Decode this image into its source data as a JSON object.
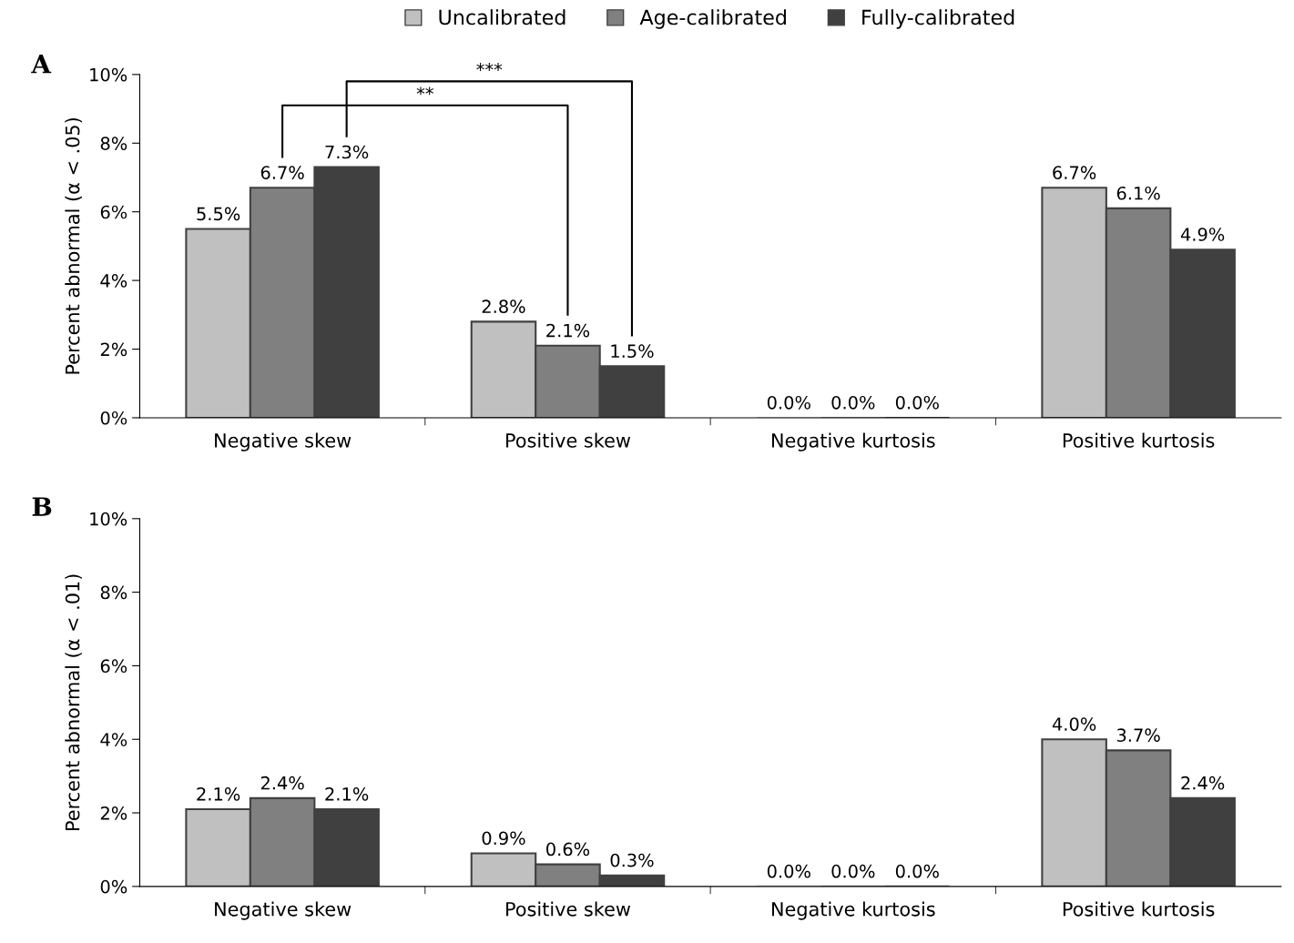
{
  "chart_data": [
    {
      "type": "bar",
      "title": "A",
      "ylabel": "Percent abnormal (α < .05)",
      "categories": [
        "Negative skew",
        "Positive skew",
        "Negative kurtosis",
        "Positive kurtosis"
      ],
      "series": [
        {
          "name": "Uncalibrated",
          "color": "#c0c0c0",
          "values": [
            5.5,
            2.8,
            0.0,
            6.7
          ],
          "value_labels": [
            "5.5%",
            "2.8%",
            "0.0%",
            "6.7%"
          ]
        },
        {
          "name": "Age-calibrated",
          "color": "#808080",
          "values": [
            6.7,
            2.1,
            0.0,
            6.1
          ],
          "value_labels": [
            "6.7%",
            "2.1%",
            "0.0%",
            "6.1%"
          ]
        },
        {
          "name": "Fully-calibrated",
          "color": "#404040",
          "values": [
            7.3,
            1.5,
            0.0,
            4.9
          ],
          "value_labels": [
            "7.3%",
            "1.5%",
            "0.0%",
            "4.9%"
          ]
        }
      ],
      "ylim": [
        0,
        10
      ],
      "yticks": [
        {
          "value": 0,
          "label": "0%"
        },
        {
          "value": 2,
          "label": "2%"
        },
        {
          "value": 4,
          "label": "4%"
        },
        {
          "value": 6,
          "label": "6%"
        },
        {
          "value": 8,
          "label": "8%"
        },
        {
          "value": 10,
          "label": "10%"
        }
      ],
      "annotations": [
        "**",
        "***"
      ],
      "legend": "top",
      "grid": false
    },
    {
      "type": "bar",
      "title": "B",
      "ylabel": "Percent abnormal (α < .01)",
      "categories": [
        "Negative skew",
        "Positive skew",
        "Negative kurtosis",
        "Positive kurtosis"
      ],
      "series": [
        {
          "color": "#c0c0c0",
          "values": [
            2.1,
            0.9,
            0.0,
            4.0
          ],
          "value_labels": [
            "2.1%",
            "0.9%",
            "0.0%",
            "4.0%"
          ]
        },
        {
          "color": "#808080",
          "values": [
            2.4,
            0.6,
            0.0,
            3.7
          ],
          "value_labels": [
            "2.4%",
            "0.6%",
            "0.0%",
            "3.7%"
          ]
        },
        {
          "color": "#404040",
          "values": [
            2.1,
            0.3,
            0.0,
            2.4
          ],
          "value_labels": [
            "2.1%",
            "0.3%",
            "0.0%",
            "2.4%"
          ]
        }
      ],
      "ylim": [
        0,
        10
      ],
      "yticks": [
        {
          "value": 0,
          "label": "0%"
        },
        {
          "value": 2,
          "label": "2%"
        },
        {
          "value": 4,
          "label": "4%"
        },
        {
          "value": 6,
          "label": "6%"
        },
        {
          "value": 8,
          "label": "8%"
        },
        {
          "value": 10,
          "label": "10%"
        }
      ],
      "legend": false,
      "grid": false
    }
  ]
}
